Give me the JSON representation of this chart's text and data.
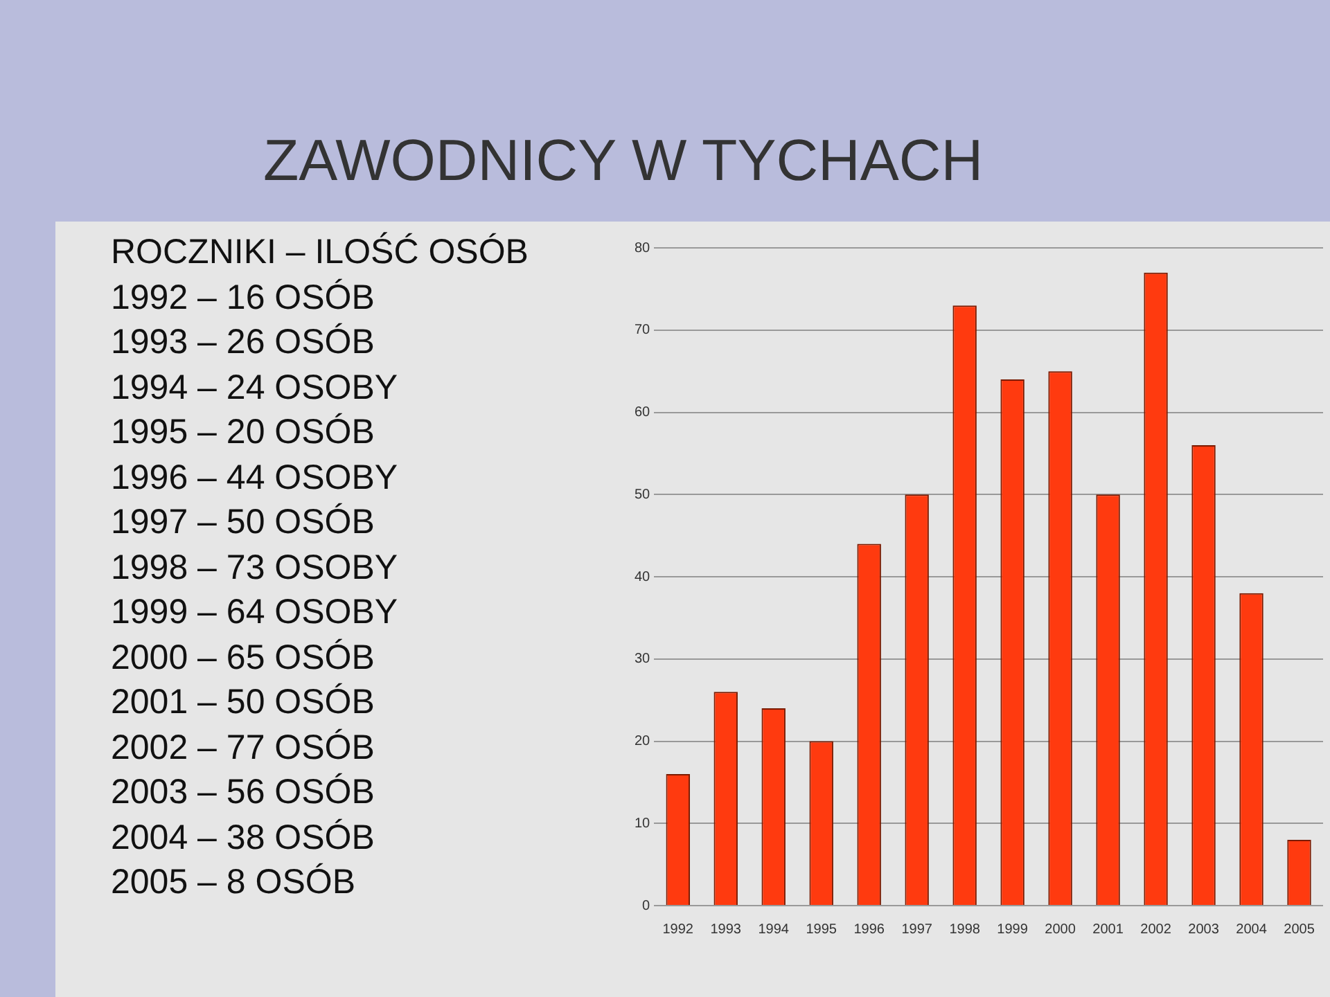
{
  "chart_data": {
    "type": "bar",
    "title": "ZAWODNICY W TYCHACH",
    "categories": [
      "1992",
      "1993",
      "1994",
      "1995",
      "1996",
      "1997",
      "1998",
      "1999",
      "2000",
      "2001",
      "2002",
      "2003",
      "2004",
      "2005"
    ],
    "values": [
      16,
      26,
      24,
      20,
      44,
      50,
      73,
      64,
      65,
      50,
      77,
      56,
      38,
      8
    ],
    "color": "#ff3a0f",
    "ylim": [
      0,
      80
    ],
    "yticks": [
      0,
      10,
      20,
      30,
      40,
      50,
      60,
      70,
      80
    ],
    "grid": "y",
    "annotations": [
      "ROCZNIKI – ILOŚĆ OSÓB",
      "1992 – 16 OSÓB",
      "1993 – 26 OSÓB",
      "1994 – 24 OSOBY",
      "1995 – 20 OSÓB",
      "1996 – 44 OSOBY",
      "1997 – 50 OSÓB",
      "1998 – 73 OSOBY",
      "1999 – 64 OSOBY",
      "2000 – 65 OSÓB",
      "2001 – 50 OSÓB",
      "2002 – 77 OSÓB",
      "2003 – 56 OSÓB",
      "2004 – 38 OSÓB",
      "2005 – 8 OSÓB"
    ]
  }
}
